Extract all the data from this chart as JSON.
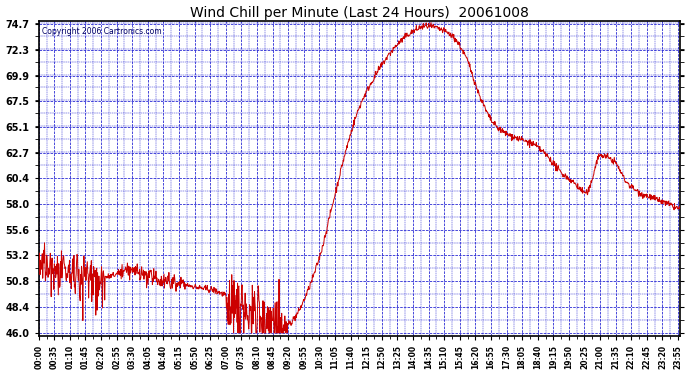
{
  "title": "Wind Chill per Minute (Last 24 Hours)  20061008",
  "copyright": "Copyright 2006 Cartronics.com",
  "ylim": [
    46.0,
    74.7
  ],
  "yticks": [
    46.0,
    48.4,
    50.8,
    53.2,
    55.6,
    58.0,
    60.4,
    62.7,
    65.1,
    67.5,
    69.9,
    72.3,
    74.7
  ],
  "line_color": "#cc0000",
  "bg_color": "#ffffff",
  "plot_bg_color": "#ffffff",
  "grid_color": "#0000cc",
  "title_color": "#000000",
  "border_color": "#000000",
  "figsize": [
    6.9,
    3.75
  ],
  "dpi": 100,
  "xtick_labels": [
    "00:00",
    "00:35",
    "01:10",
    "01:45",
    "02:20",
    "02:55",
    "03:30",
    "04:05",
    "04:40",
    "05:15",
    "05:50",
    "06:25",
    "07:00",
    "07:35",
    "08:10",
    "08:45",
    "09:20",
    "09:55",
    "10:30",
    "11:05",
    "11:40",
    "12:15",
    "12:50",
    "13:25",
    "14:00",
    "14:35",
    "15:10",
    "15:45",
    "16:20",
    "16:55",
    "17:30",
    "18:05",
    "18:40",
    "19:15",
    "19:50",
    "20:25",
    "21:00",
    "21:35",
    "22:10",
    "22:45",
    "23:20",
    "23:55"
  ],
  "curve_knots_t": [
    0.0,
    0.5,
    1.0,
    1.5,
    2.0,
    2.5,
    3.0,
    3.5,
    4.0,
    4.5,
    5.0,
    5.5,
    6.0,
    6.5,
    7.0,
    7.5,
    8.0,
    8.3,
    8.6,
    9.0,
    9.3,
    9.6,
    10.0,
    10.5,
    11.0,
    11.5,
    12.0,
    12.5,
    13.0,
    13.5,
    14.0,
    14.5,
    15.0,
    15.5,
    16.0,
    16.5,
    17.0,
    17.5,
    18.0,
    18.5,
    19.0,
    19.5,
    20.0,
    20.5,
    21.0,
    21.5,
    22.0,
    22.5,
    23.0,
    23.5,
    24.0
  ],
  "curve_knots_v": [
    52.5,
    52.0,
    51.5,
    51.8,
    51.5,
    51.2,
    51.5,
    51.8,
    51.3,
    51.0,
    50.8,
    50.5,
    50.2,
    50.0,
    49.5,
    49.0,
    48.5,
    48.2,
    47.8,
    47.2,
    46.8,
    47.5,
    49.5,
    53.0,
    58.0,
    63.0,
    67.0,
    69.5,
    71.5,
    73.0,
    74.0,
    74.5,
    74.2,
    73.5,
    71.5,
    68.0,
    65.5,
    64.5,
    64.0,
    63.5,
    62.5,
    61.0,
    60.0,
    59.0,
    62.5,
    62.0,
    60.0,
    59.0,
    58.5,
    58.0,
    57.5
  ]
}
